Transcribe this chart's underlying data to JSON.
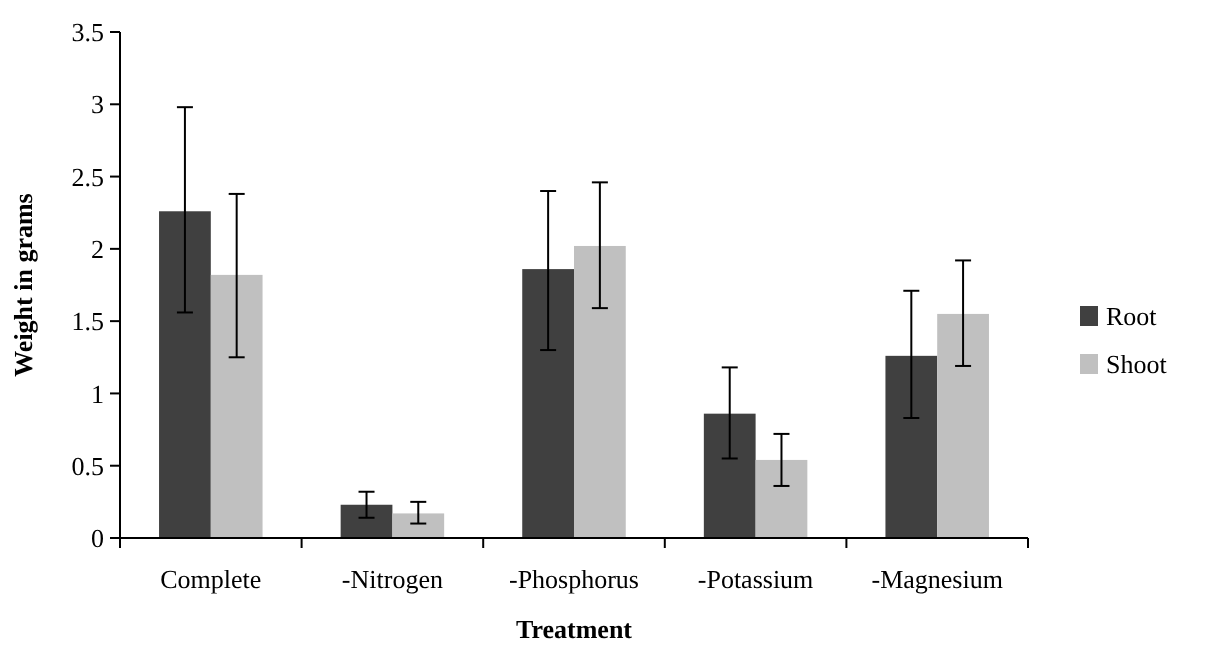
{
  "chart_data": {
    "type": "bar",
    "xlabel": "Treatment",
    "ylabel": "Weight in grams",
    "categories": [
      "Complete",
      "-Nitrogen",
      "-Phosphorus",
      "-Potassium",
      "-Magnesium"
    ],
    "series": [
      {
        "name": "Root",
        "color": "#404040",
        "values": [
          2.26,
          0.23,
          1.86,
          0.86,
          1.26
        ],
        "errors": [
          [
            1.56,
            2.98
          ],
          [
            0.14,
            0.32
          ],
          [
            1.3,
            2.4
          ],
          [
            0.55,
            1.18
          ],
          [
            0.83,
            1.71
          ]
        ]
      },
      {
        "name": "Shoot",
        "color": "#c0c0c0",
        "values": [
          1.82,
          0.17,
          2.02,
          0.54,
          1.55
        ],
        "errors": [
          [
            1.25,
            2.38
          ],
          [
            0.1,
            0.25
          ],
          [
            1.59,
            2.46
          ],
          [
            0.36,
            0.72
          ],
          [
            1.19,
            1.92
          ]
        ]
      }
    ],
    "ylim": [
      0,
      3.5
    ],
    "yticks": [
      {
        "value": 0,
        "label": "0"
      },
      {
        "value": 0.5,
        "label": "0.5"
      },
      {
        "value": 1,
        "label": "1"
      },
      {
        "value": 1.5,
        "label": "1.5"
      },
      {
        "value": 2,
        "label": "2"
      },
      {
        "value": 2.5,
        "label": "2.5"
      },
      {
        "value": 3,
        "label": "3"
      },
      {
        "value": 3.5,
        "label": "3.5"
      }
    ],
    "grid": false,
    "legend": "right"
  }
}
